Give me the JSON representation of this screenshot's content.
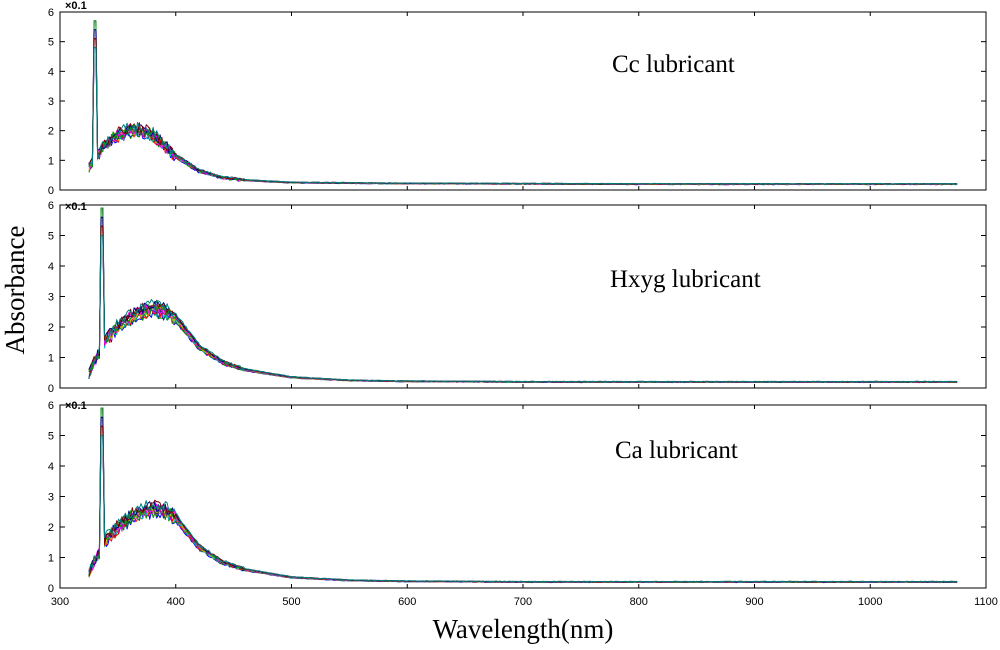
{
  "chart_data": {
    "type": "line",
    "xlabel": "Wavelength(nm)",
    "ylabel": "Absorbance",
    "xlim": [
      300,
      1100
    ],
    "xticks": [
      300,
      400,
      500,
      600,
      700,
      800,
      900,
      1000,
      1100
    ],
    "ylim": [
      0,
      6
    ],
    "yticks": [
      0,
      1,
      2,
      3,
      4,
      5,
      6
    ],
    "y_scale_factor": "×0.1",
    "grid": false,
    "legend": "none",
    "panels": [
      {
        "title": "Cc lubricant",
        "curve_count": 12,
        "x": [
          325,
          330,
          335,
          340,
          350,
          360,
          370,
          380,
          390,
          400,
          420,
          440,
          460,
          500,
          600,
          700,
          800,
          900,
          1000,
          1075
        ],
        "y": [
          0.8,
          1.0,
          1.3,
          1.6,
          1.85,
          2.0,
          2.0,
          1.85,
          1.5,
          1.15,
          0.65,
          0.42,
          0.33,
          0.25,
          0.22,
          0.21,
          0.2,
          0.2,
          0.2,
          0.2
        ],
        "spike_x": 330,
        "spike_y": 5.7
      },
      {
        "title": "Hxyg lubricant",
        "curve_count": 12,
        "x": [
          325,
          330,
          335,
          340,
          350,
          360,
          370,
          380,
          390,
          400,
          420,
          440,
          460,
          500,
          550,
          600,
          700,
          800,
          900,
          1000,
          1075
        ],
        "y": [
          0.5,
          0.9,
          1.2,
          1.6,
          2.0,
          2.3,
          2.5,
          2.6,
          2.55,
          2.3,
          1.35,
          0.85,
          0.6,
          0.35,
          0.25,
          0.22,
          0.2,
          0.2,
          0.2,
          0.2,
          0.2
        ],
        "spike_x": 336,
        "spike_y": 5.9
      },
      {
        "title": "Ca lubricant",
        "curve_count": 12,
        "x": [
          325,
          330,
          335,
          340,
          350,
          360,
          370,
          380,
          390,
          400,
          420,
          440,
          460,
          500,
          550,
          600,
          700,
          800,
          900,
          1000,
          1075
        ],
        "y": [
          0.5,
          0.9,
          1.2,
          1.6,
          2.0,
          2.3,
          2.5,
          2.6,
          2.55,
          2.3,
          1.35,
          0.85,
          0.6,
          0.35,
          0.25,
          0.22,
          0.2,
          0.2,
          0.2,
          0.2,
          0.2
        ],
        "spike_x": 336,
        "spike_y": 5.9
      }
    ],
    "colors": [
      "#0000ff",
      "#008000",
      "#ff0000",
      "#00bfbf",
      "#bf00bf",
      "#bfbf00",
      "#404040",
      "#ff00ff",
      "#00a000",
      "#000080",
      "#800000",
      "#008080"
    ]
  }
}
